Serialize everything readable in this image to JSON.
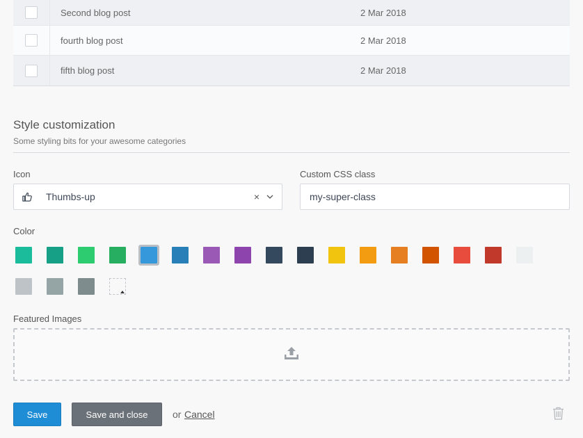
{
  "table": {
    "rows": [
      {
        "title": "Second blog post",
        "date": "2 Mar 2018"
      },
      {
        "title": "fourth blog post",
        "date": "2 Mar 2018"
      },
      {
        "title": "fifth blog post",
        "date": "2 Mar 2018"
      }
    ]
  },
  "style_section": {
    "title": "Style customization",
    "subtitle": "Some styling bits for your awesome categories"
  },
  "icon_field": {
    "label": "Icon",
    "value": "Thumbs-up",
    "clear_glyph": "×",
    "icon": "thumbs-up-icon"
  },
  "css_field": {
    "label": "Custom CSS class",
    "value": "my-super-class"
  },
  "color_field": {
    "label": "Color",
    "selected": "#3498db",
    "colors": [
      "#1abc9c",
      "#16a085",
      "#2ecc71",
      "#27ae60",
      "#3498db",
      "#2980b9",
      "#9b59b6",
      "#8e44ad",
      "#34495e",
      "#2c3e50",
      "#f1c40f",
      "#f39c12",
      "#e67e22",
      "#d35400",
      "#e74c3c",
      "#c0392b",
      "#ecf0f1",
      "#bdc3c7",
      "#95a5a6",
      "#7f8c8d"
    ]
  },
  "featured_images": {
    "label": "Featured Images",
    "icon": "upload-icon"
  },
  "actions": {
    "save_label": "Save",
    "save_close_label": "Save and close",
    "or_text": "or",
    "cancel_label": "Cancel",
    "delete_icon": "trash-icon"
  },
  "colors": {
    "primary": "#1f8dd6",
    "secondary": "#6b7178"
  }
}
